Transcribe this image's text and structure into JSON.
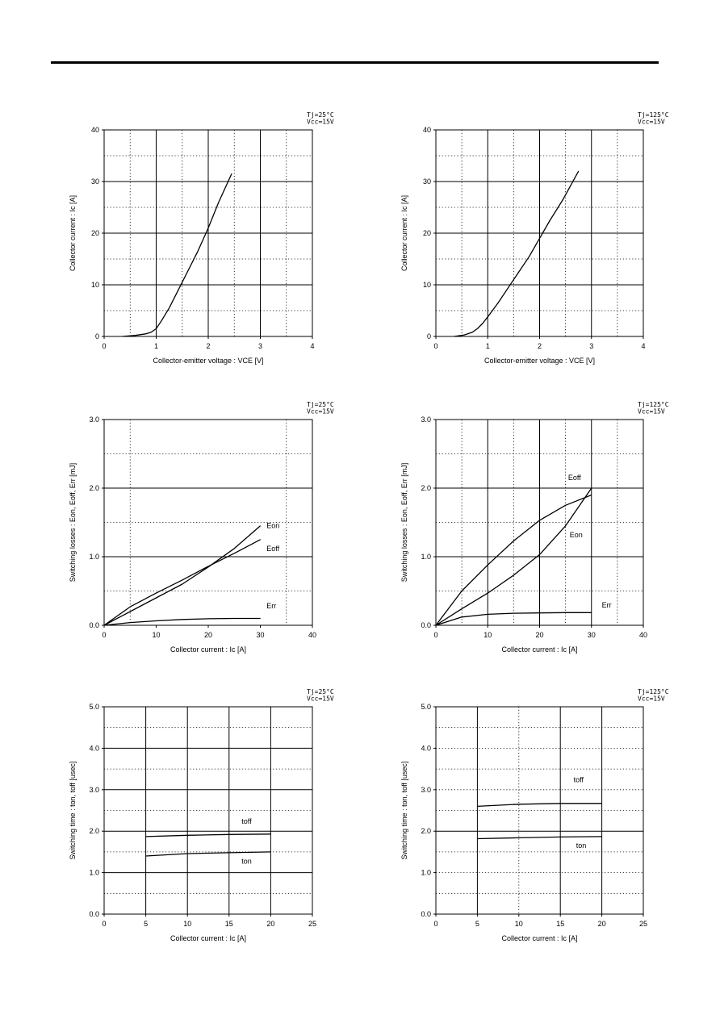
{
  "charts": [
    {
      "id": "ic-vce-25",
      "type": "line",
      "conditions": [
        "Tj=25°C",
        "Vcc=15V"
      ],
      "xlabel": "Collector-emitter voltage : VCE [V]",
      "ylabel": "Collector current : Ic [A]",
      "xlim": [
        0,
        4
      ],
      "ylim": [
        0,
        40
      ],
      "xticks": [
        0,
        1,
        2,
        3,
        4
      ],
      "yticks": [
        0,
        10,
        20,
        30,
        40
      ],
      "xticklabels": [
        "0",
        "1",
        "2",
        "3",
        "4"
      ],
      "yticklabels": [
        "0",
        "10",
        "20",
        "30",
        "40"
      ],
      "major_x": [
        1,
        2,
        3
      ],
      "minor_x": [
        0.5,
        1.5,
        2.5,
        3.5
      ],
      "major_y": [
        10,
        20,
        30
      ],
      "minor_y": [
        5,
        15,
        25,
        35
      ],
      "series": [
        {
          "label": "",
          "x": [
            0.35,
            0.6,
            0.8,
            0.9,
            1.0,
            1.1,
            1.25,
            1.4,
            1.6,
            1.8,
            2.0,
            2.2,
            2.45
          ],
          "y": [
            0,
            0.2,
            0.5,
            0.8,
            1.5,
            3.0,
            5.5,
            8.5,
            12.5,
            16.5,
            21.0,
            26.0,
            31.5
          ]
        }
      ]
    },
    {
      "id": "ic-vce-125",
      "type": "line",
      "conditions": [
        "Tj=125°C",
        "Vcc=15V"
      ],
      "xlabel": "Collector-emitter voltage : VCE [V]",
      "ylabel": "Collector current : Ic [A]",
      "xlim": [
        0,
        4
      ],
      "ylim": [
        0,
        40
      ],
      "xticks": [
        0,
        1,
        2,
        3,
        4
      ],
      "yticks": [
        0,
        10,
        20,
        30,
        40
      ],
      "xticklabels": [
        "0",
        "1",
        "2",
        "3",
        "4"
      ],
      "yticklabels": [
        "0",
        "10",
        "20",
        "30",
        "40"
      ],
      "major_x": [
        1,
        2,
        3
      ],
      "minor_x": [
        0.5,
        1.5,
        2.5,
        3.5
      ],
      "major_y": [
        10,
        20,
        30
      ],
      "minor_y": [
        5,
        15,
        25,
        35
      ],
      "series": [
        {
          "label": "",
          "x": [
            0.35,
            0.55,
            0.7,
            0.8,
            0.9,
            1.0,
            1.2,
            1.4,
            1.6,
            1.8,
            2.0,
            2.2,
            2.45,
            2.75
          ],
          "y": [
            0,
            0.3,
            0.8,
            1.5,
            2.5,
            3.8,
            6.5,
            9.5,
            12.5,
            15.5,
            19.0,
            22.5,
            26.5,
            32.0
          ]
        }
      ]
    },
    {
      "id": "eloss-ic-25",
      "type": "line",
      "conditions": [
        "Tj=25°C",
        "Vcc=15V"
      ],
      "xlabel": "Collector current : Ic [A]",
      "ylabel": "Switching losses : Eon, Eoff, Err [mJ]",
      "xlim": [
        0,
        40
      ],
      "ylim": [
        0,
        3
      ],
      "xticks": [
        0,
        10,
        20,
        30,
        40
      ],
      "yticks": [
        0,
        1,
        2,
        3
      ],
      "xticklabels": [
        "0",
        "10",
        "20",
        "30",
        "40"
      ],
      "yticklabels": [
        "0.0",
        "1.0",
        "2.0",
        "3.0"
      ],
      "major_x": [],
      "minor_x": [
        5,
        35
      ],
      "major_y": [
        1,
        2
      ],
      "minor_y": [
        0.5,
        1.5,
        2.5
      ],
      "series": [
        {
          "label": "Eon",
          "label_pos": [
            31.2,
            1.42
          ],
          "x": [
            0,
            5,
            10,
            15,
            20,
            25,
            30
          ],
          "y": [
            0,
            0.2,
            0.4,
            0.6,
            0.85,
            1.12,
            1.45
          ]
        },
        {
          "label": "Eoff",
          "label_pos": [
            31.2,
            1.08
          ],
          "x": [
            0,
            5,
            10,
            15,
            20,
            25,
            30
          ],
          "y": [
            0,
            0.27,
            0.47,
            0.66,
            0.86,
            1.05,
            1.25
          ]
        },
        {
          "label": "Err",
          "label_pos": [
            31.2,
            0.25
          ],
          "x": [
            0,
            5,
            10,
            15,
            20,
            25,
            30
          ],
          "y": [
            0,
            0.04,
            0.065,
            0.085,
            0.095,
            0.1,
            0.1
          ]
        }
      ]
    },
    {
      "id": "eloss-ic-125",
      "type": "line",
      "conditions": [
        "Tj=125°C",
        "Vcc=15V"
      ],
      "xlabel": "Collector current : Ic [A]",
      "ylabel": "Switching losses : Eon, Eoff, Err [mJ]",
      "xlim": [
        0,
        40
      ],
      "ylim": [
        0,
        3
      ],
      "xticks": [
        0,
        10,
        20,
        30,
        40
      ],
      "yticks": [
        0,
        1,
        2,
        3
      ],
      "xticklabels": [
        "0",
        "10",
        "20",
        "30",
        "40"
      ],
      "yticklabels": [
        "0.0",
        "1.0",
        "2.0",
        "3.0"
      ],
      "major_x": [
        10,
        20,
        30
      ],
      "minor_x": [
        5,
        15,
        25,
        35
      ],
      "major_y": [
        1,
        2
      ],
      "minor_y": [
        0.5,
        1.5,
        2.5
      ],
      "series": [
        {
          "label": "Eoff",
          "label_pos": [
            25.5,
            2.12
          ],
          "x": [
            0,
            5,
            10,
            15,
            20,
            25,
            30
          ],
          "y": [
            0,
            0.5,
            0.88,
            1.23,
            1.53,
            1.75,
            1.9
          ]
        },
        {
          "label": "Eon",
          "label_pos": [
            25.8,
            1.28
          ],
          "x": [
            0,
            5,
            10,
            15,
            20,
            25,
            30
          ],
          "y": [
            0,
            0.24,
            0.47,
            0.73,
            1.03,
            1.45,
            2.0
          ]
        },
        {
          "label": "Err",
          "label_pos": [
            32.0,
            0.26
          ],
          "x": [
            0,
            5,
            10,
            15,
            20,
            25,
            30
          ],
          "y": [
            0,
            0.12,
            0.16,
            0.175,
            0.18,
            0.185,
            0.185
          ]
        }
      ]
    },
    {
      "id": "tsw-ic-25",
      "type": "line",
      "conditions": [
        "Tj=25°C",
        "Vcc=15V"
      ],
      "xlabel": "Collector current : Ic [A]",
      "ylabel": "Switching time : ton, toff [usec]",
      "xlim": [
        0,
        25
      ],
      "ylim": [
        0,
        5
      ],
      "xticks": [
        0,
        5,
        10,
        15,
        20,
        25
      ],
      "yticks": [
        0,
        1,
        2,
        3,
        4,
        5
      ],
      "xticklabels": [
        "0",
        "5",
        "10",
        "15",
        "20",
        "25"
      ],
      "yticklabels": [
        "0.0",
        "1.0",
        "2.0",
        "3.0",
        "4.0",
        "5.0"
      ],
      "major_x": [
        5,
        10,
        15,
        20
      ],
      "minor_x": [],
      "major_y": [
        1,
        2,
        3,
        4
      ],
      "minor_y": [
        0.5,
        1.5,
        2.5,
        3.5,
        4.5
      ],
      "series": [
        {
          "label": "toff",
          "label_pos": [
            16.5,
            2.18
          ],
          "x": [
            5,
            10,
            15,
            20
          ],
          "y": [
            1.87,
            1.9,
            1.92,
            1.93
          ]
        },
        {
          "label": "ton",
          "label_pos": [
            16.5,
            1.22
          ],
          "x": [
            5,
            10,
            15,
            20
          ],
          "y": [
            1.4,
            1.46,
            1.48,
            1.5
          ]
        }
      ]
    },
    {
      "id": "tsw-ic-125",
      "type": "line",
      "conditions": [
        "Tj=125°C",
        "Vcc=15V"
      ],
      "xlabel": "Collector current : Ic [A]",
      "ylabel": "Switching time : ton, toff [usec]",
      "xlim": [
        0,
        25
      ],
      "ylim": [
        0,
        5
      ],
      "xticks": [
        0,
        5,
        10,
        15,
        20,
        25
      ],
      "yticks": [
        0,
        1,
        2,
        3,
        4,
        5
      ],
      "xticklabels": [
        "0",
        "5",
        "10",
        "15",
        "20",
        "25"
      ],
      "yticklabels": [
        "0.0",
        "1.0",
        "2.0",
        "3.0",
        "4.0",
        "5.0"
      ],
      "major_x": [
        5,
        15,
        20
      ],
      "minor_x": [
        10
      ],
      "major_y": [
        2
      ],
      "minor_y": [
        0.5,
        1,
        1.5,
        2.5,
        3,
        3.5,
        4,
        4.5
      ],
      "series": [
        {
          "label": "toff",
          "label_pos": [
            16.6,
            3.18
          ],
          "x": [
            5,
            10,
            15,
            20
          ],
          "y": [
            2.6,
            2.65,
            2.67,
            2.67
          ]
        },
        {
          "label": "ton",
          "label_pos": [
            16.9,
            1.6
          ],
          "x": [
            5,
            10,
            15,
            20
          ],
          "y": [
            1.82,
            1.84,
            1.86,
            1.87
          ]
        }
      ]
    }
  ]
}
